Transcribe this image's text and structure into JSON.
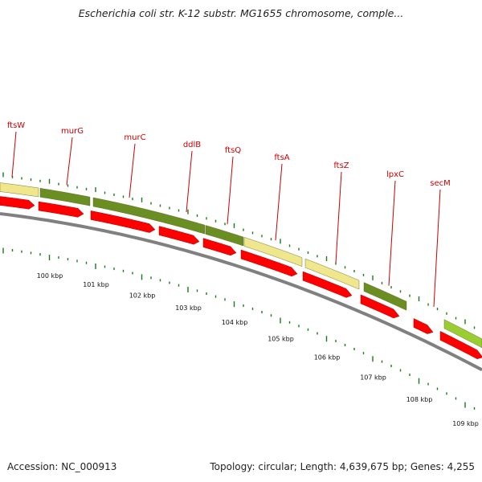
{
  "title": "Escherichia coli str. K-12 substr. MG1655 chromosome, comple...",
  "accession": "Accession: NC_000913",
  "summary": "Topology: circular; Length: 4,639,675 bp; Genes: 4,255",
  "genes": [
    {
      "name": "ftsW"
    },
    {
      "name": "murG"
    },
    {
      "name": "murC"
    },
    {
      "name": "ddlB"
    },
    {
      "name": "ftsQ"
    },
    {
      "name": "ftsA"
    },
    {
      "name": "ftsZ"
    },
    {
      "name": "lpxC"
    },
    {
      "name": "secM"
    }
  ],
  "ruler_labels": [
    "100 kbp",
    "101 kbp",
    "102 kbp",
    "103 kbp",
    "104 kbp",
    "105 kbp",
    "106 kbp",
    "107 kbp",
    "108 kbp",
    "109 kbp"
  ],
  "colors": {
    "gene_label": "#cc0000",
    "cds_arrow": "#ff0000",
    "cog_olive": "#6b8e23",
    "cog_tan": "#f0e68c",
    "cog_lime": "#9acd32",
    "tick_green": "#1a7a1a",
    "backbone": "#808080"
  }
}
